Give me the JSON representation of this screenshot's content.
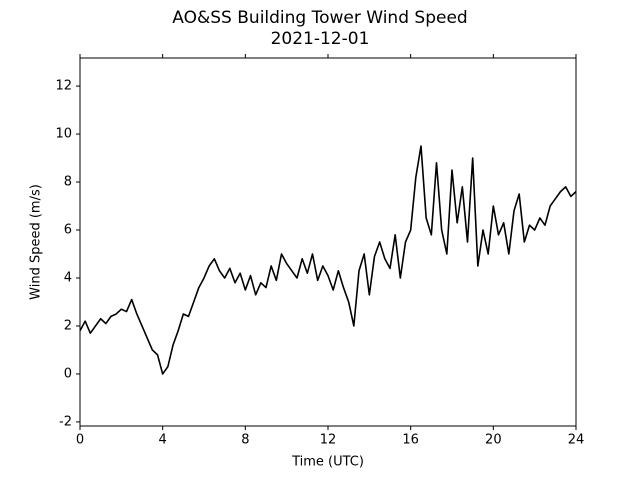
{
  "chart_data": {
    "type": "line",
    "title": "AO&SS Building Tower Wind Speed",
    "subtitle": "2021-12-01",
    "x_label": "Time (UTC)",
    "y_label": "Wind Speed (m/s)",
    "color": "#000000",
    "x": [
      0,
      0.25,
      0.5,
      0.75,
      1,
      1.25,
      1.5,
      1.75,
      2,
      2.25,
      2.5,
      2.75,
      3,
      3.25,
      3.5,
      3.75,
      4,
      4.25,
      4.5,
      4.75,
      5,
      5.25,
      5.5,
      5.75,
      6,
      6.25,
      6.5,
      6.75,
      7,
      7.25,
      7.5,
      7.75,
      8,
      8.25,
      8.5,
      8.75,
      9,
      9.25,
      9.5,
      9.75,
      10,
      10.25,
      10.5,
      10.75,
      11,
      11.25,
      11.5,
      11.75,
      12,
      12.25,
      12.5,
      12.75,
      13,
      13.25,
      13.5,
      13.75,
      14,
      14.25,
      14.5,
      14.75,
      15,
      15.25,
      15.5,
      15.75,
      16,
      16.25,
      16.5,
      16.75,
      17,
      17.25,
      17.5,
      17.75,
      18,
      18.25,
      18.5,
      18.75,
      19,
      19.25,
      19.5,
      19.75,
      20,
      20.25,
      20.5,
      20.75,
      21,
      21.25,
      21.5,
      21.75,
      22,
      22.25,
      22.5,
      22.75,
      23,
      23.25,
      23.5,
      23.75,
      24
    ],
    "values": [
      1.8,
      2.2,
      1.7,
      2.0,
      2.3,
      2.1,
      2.4,
      2.5,
      2.7,
      2.6,
      3.1,
      2.5,
      2.0,
      1.5,
      1.0,
      0.8,
      0.0,
      0.3,
      1.2,
      1.8,
      2.5,
      2.4,
      3.0,
      3.6,
      4.0,
      4.5,
      4.8,
      4.3,
      4.0,
      4.4,
      3.8,
      4.2,
      3.5,
      4.1,
      3.3,
      3.8,
      3.6,
      4.5,
      3.9,
      5.0,
      4.6,
      4.3,
      4.0,
      4.8,
      4.2,
      5.0,
      3.9,
      4.5,
      4.1,
      3.5,
      4.3,
      3.6,
      3.0,
      2.0,
      4.3,
      5.0,
      3.3,
      4.9,
      5.5,
      4.8,
      4.4,
      5.8,
      4.0,
      5.5,
      6.0,
      8.2,
      9.5,
      6.5,
      5.8,
      8.8,
      6.0,
      5.0,
      8.5,
      6.3,
      7.8,
      5.5,
      9.0,
      4.5,
      6.0,
      5.0,
      7.0,
      5.8,
      6.3,
      5.0,
      6.8,
      7.5,
      5.5,
      6.2,
      6.0,
      6.5,
      6.2,
      7.0,
      7.3,
      7.6,
      7.8,
      7.4,
      7.6
    ],
    "xlim": [
      0,
      24
    ],
    "xticks": [
      0,
      4,
      8,
      12,
      16,
      20,
      24
    ],
    "ylim": [
      -2.17,
      13.17
    ],
    "yticks": [
      -2,
      0,
      2,
      4,
      6,
      8,
      10,
      12
    ],
    "grid": false
  }
}
